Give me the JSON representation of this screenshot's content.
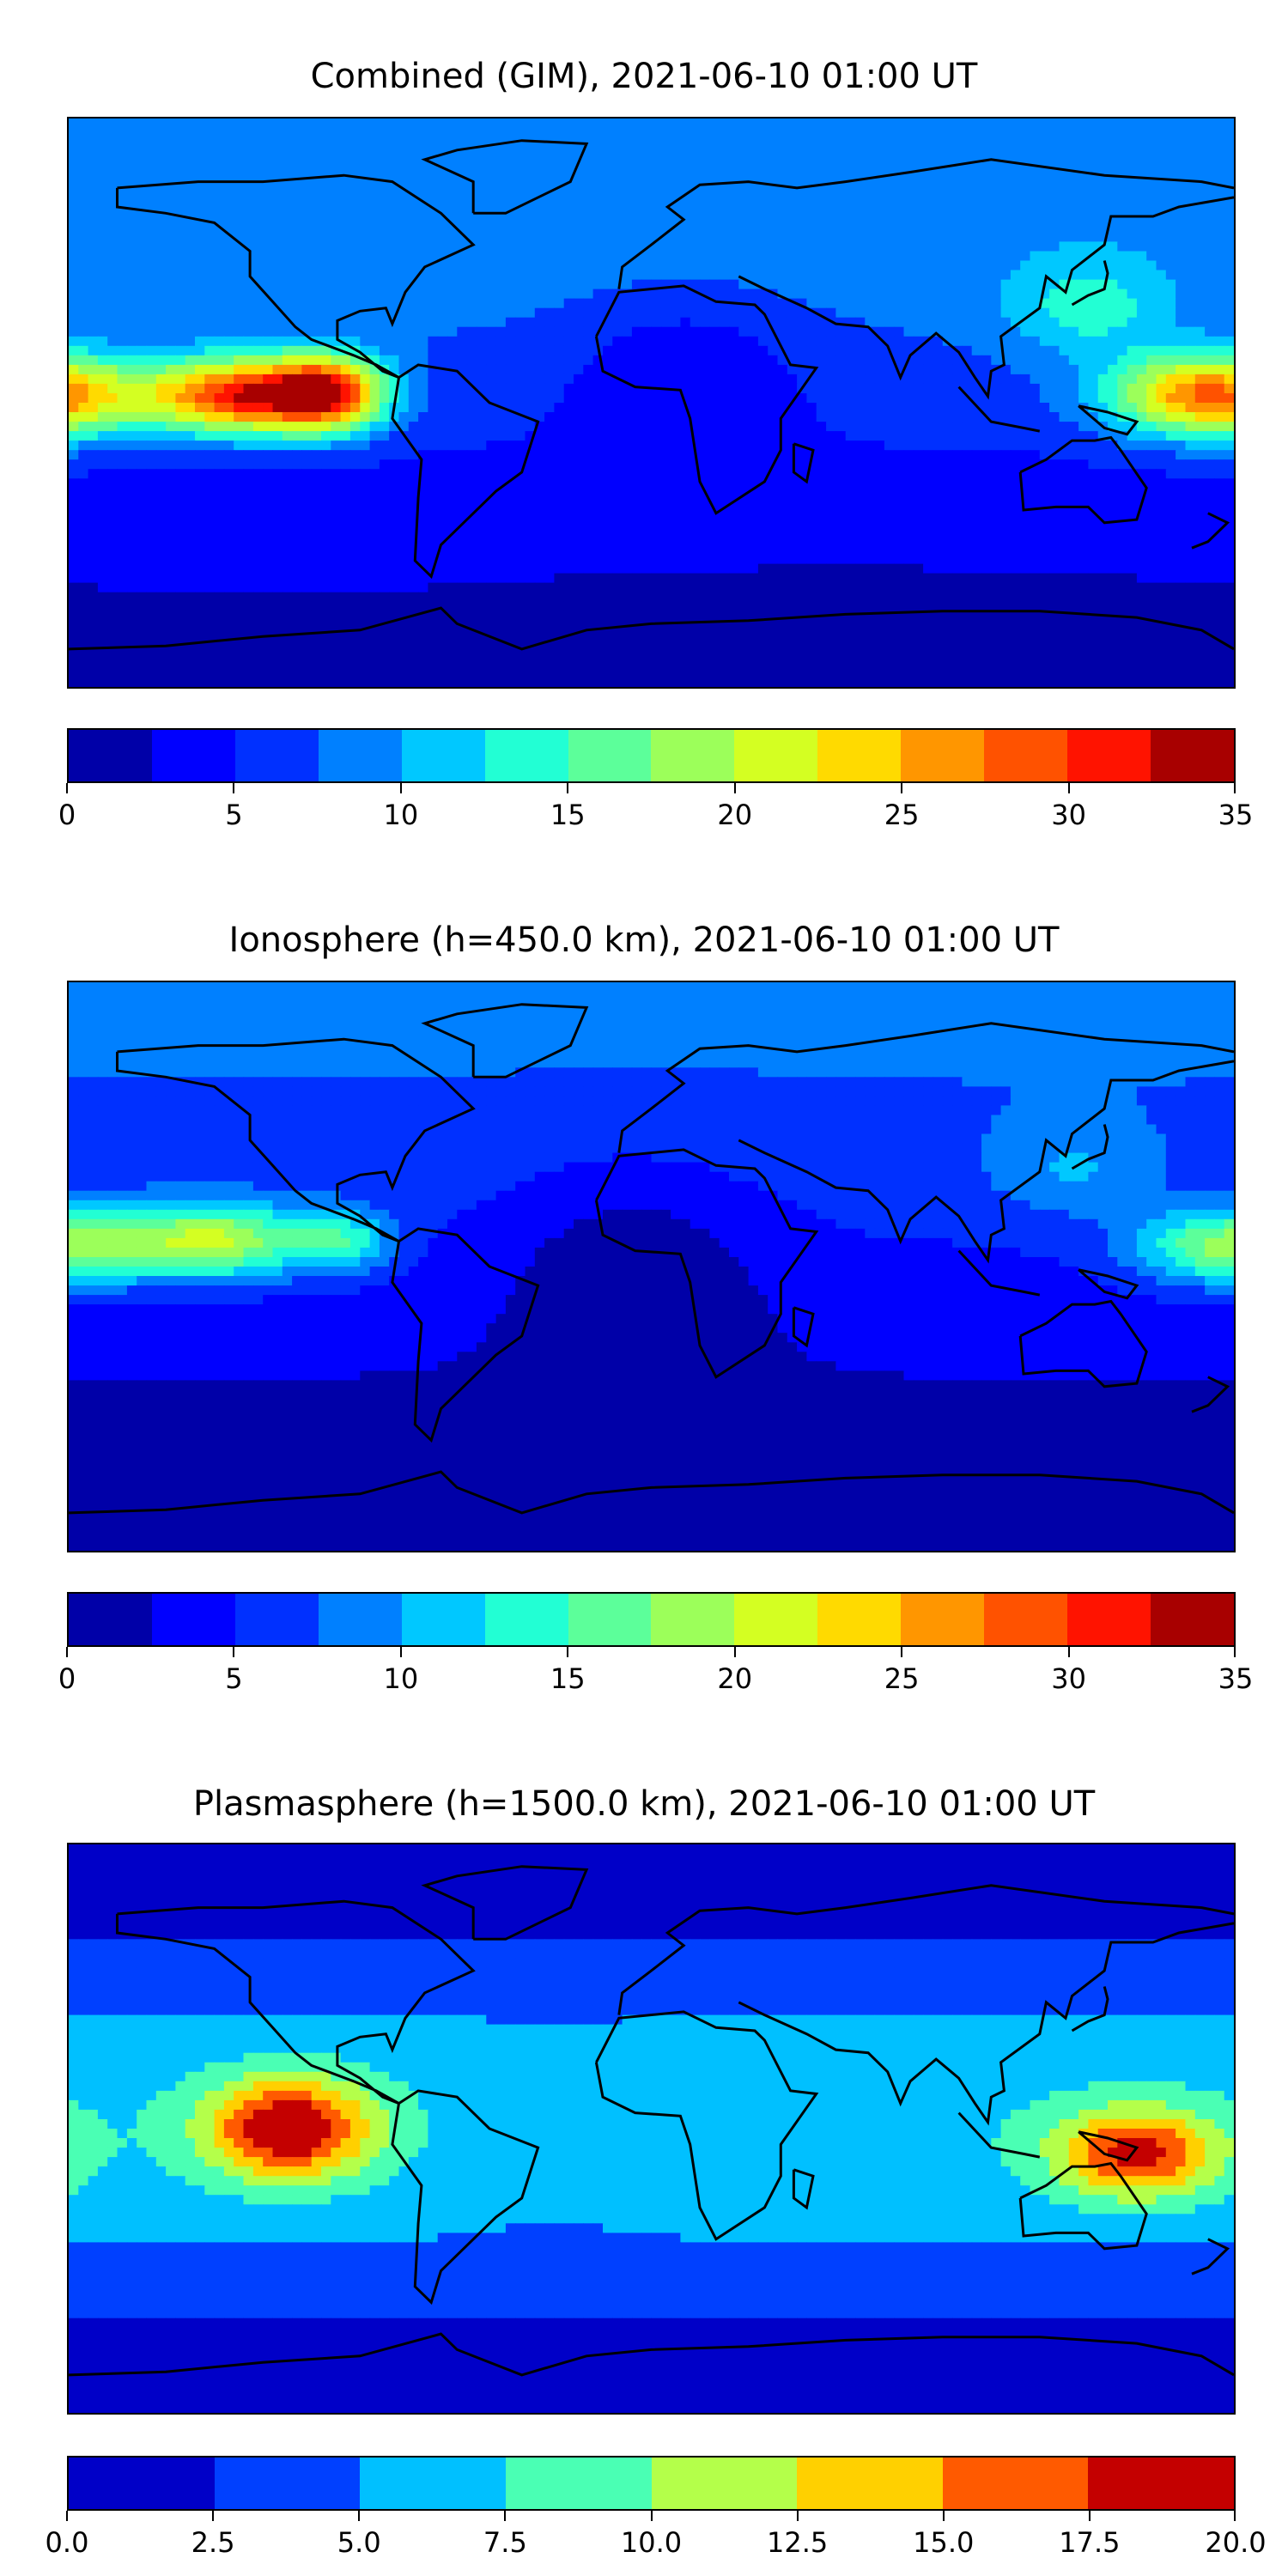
{
  "chart_data": [
    {
      "type": "heatmap",
      "title": "Combined (GIM), 2021-06-10 01:00 UT",
      "xlim": [
        -180,
        180
      ],
      "ylim": [
        -90,
        90
      ],
      "base": {
        "mean": 6,
        "north_south_gradient": 4
      },
      "features": [
        {
          "lon": -128,
          "lat": 2,
          "value": 24,
          "slon": 28,
          "slat": 12
        },
        {
          "lon": -100,
          "lat": 3,
          "value": 22,
          "slon": 18,
          "slat": 12
        },
        {
          "lon": 172,
          "lat": 2,
          "value": 22,
          "slon": 30,
          "slat": 13
        },
        {
          "lon": 135,
          "lat": 30,
          "value": 6,
          "slon": 25,
          "slat": 15
        },
        {
          "lon": 10,
          "lat": 10,
          "value": -4,
          "slon": 35,
          "slat": 25
        },
        {
          "lon": 60,
          "lat": -70,
          "value": -3,
          "slon": 80,
          "slat": 12
        }
      ],
      "colorbar": {
        "levels": [
          0,
          2.5,
          5,
          7.5,
          10,
          12.5,
          15,
          17.5,
          20,
          22.5,
          25,
          27.5,
          30,
          32.5,
          35
        ],
        "colors": [
          "#0000a8",
          "#0000ff",
          "#0030ff",
          "#0080ff",
          "#00c8ff",
          "#22ffd4",
          "#5cff9a",
          "#9cff5a",
          "#d4ff22",
          "#ffda00",
          "#ff9600",
          "#ff5200",
          "#ff1300",
          "#a80000"
        ],
        "ticks": [
          0,
          5,
          10,
          15,
          20,
          25,
          30,
          35
        ],
        "tick_labels": [
          "0",
          "5",
          "10",
          "15",
          "20",
          "25",
          "30",
          "35"
        ]
      }
    },
    {
      "type": "heatmap",
      "title": "Ionosphere  (h=450.0 km), 2021-06-10 01:00 UT",
      "xlim": [
        -180,
        180
      ],
      "ylim": [
        -90,
        90
      ],
      "base": {
        "mean": 4.5,
        "north_south_gradient": 3.5
      },
      "features": [
        {
          "lon": -135,
          "lat": 8,
          "value": 15,
          "slon": 30,
          "slat": 12
        },
        {
          "lon": -95,
          "lat": 8,
          "value": 8,
          "slon": 15,
          "slat": 10
        },
        {
          "lon": 178,
          "lat": 6,
          "value": 13,
          "slon": 28,
          "slat": 12
        },
        {
          "lon": 130,
          "lat": 30,
          "value": 4,
          "slon": 25,
          "slat": 15
        },
        {
          "lon": -5,
          "lat": 0,
          "value": -4,
          "slon": 40,
          "slat": 35
        }
      ],
      "colorbar": {
        "levels": [
          0,
          2.5,
          5,
          7.5,
          10,
          12.5,
          15,
          17.5,
          20,
          22.5,
          25,
          27.5,
          30,
          32.5,
          35
        ],
        "colors": [
          "#0000a8",
          "#0000ff",
          "#0030ff",
          "#0080ff",
          "#00c8ff",
          "#22ffd4",
          "#5cff9a",
          "#9cff5a",
          "#d4ff22",
          "#ffda00",
          "#ff9600",
          "#ff5200",
          "#ff1300",
          "#a80000"
        ],
        "ticks": [
          0,
          5,
          10,
          15,
          20,
          25,
          30,
          35
        ],
        "tick_labels": [
          "0",
          "5",
          "10",
          "15",
          "20",
          "25",
          "30",
          "35"
        ]
      }
    },
    {
      "type": "heatmap",
      "title": "Plasmasphere (h=1500.0 km), 2021-06-10 01:00 UT",
      "xlim": [
        -180,
        180
      ],
      "ylim": [
        -90,
        90
      ],
      "base": {
        "mean": 1,
        "equator_bulge": 6
      },
      "features": [
        {
          "lon": -112,
          "lat": 0,
          "value": 14,
          "slon": 25,
          "slat": 16
        },
        {
          "lon": 150,
          "lat": -8,
          "value": 12,
          "slon": 25,
          "slat": 14
        },
        {
          "lon": -30,
          "lat": -5,
          "value": -1.5,
          "slon": 30,
          "slat": 25
        }
      ],
      "colorbar": {
        "levels": [
          0,
          2.5,
          5,
          7.5,
          10,
          12.5,
          15,
          17.5,
          20
        ],
        "colors": [
          "#0000c8",
          "#0040ff",
          "#00c0ff",
          "#4affb4",
          "#b4ff4a",
          "#ffd000",
          "#ff5a00",
          "#c40000"
        ],
        "ticks": [
          0,
          2.5,
          5,
          7.5,
          10,
          12.5,
          15,
          17.5,
          20
        ],
        "tick_labels": [
          "0.0",
          "2.5",
          "5.0",
          "7.5",
          "10.0",
          "12.5",
          "15.0",
          "17.5",
          "20.0"
        ]
      }
    }
  ]
}
